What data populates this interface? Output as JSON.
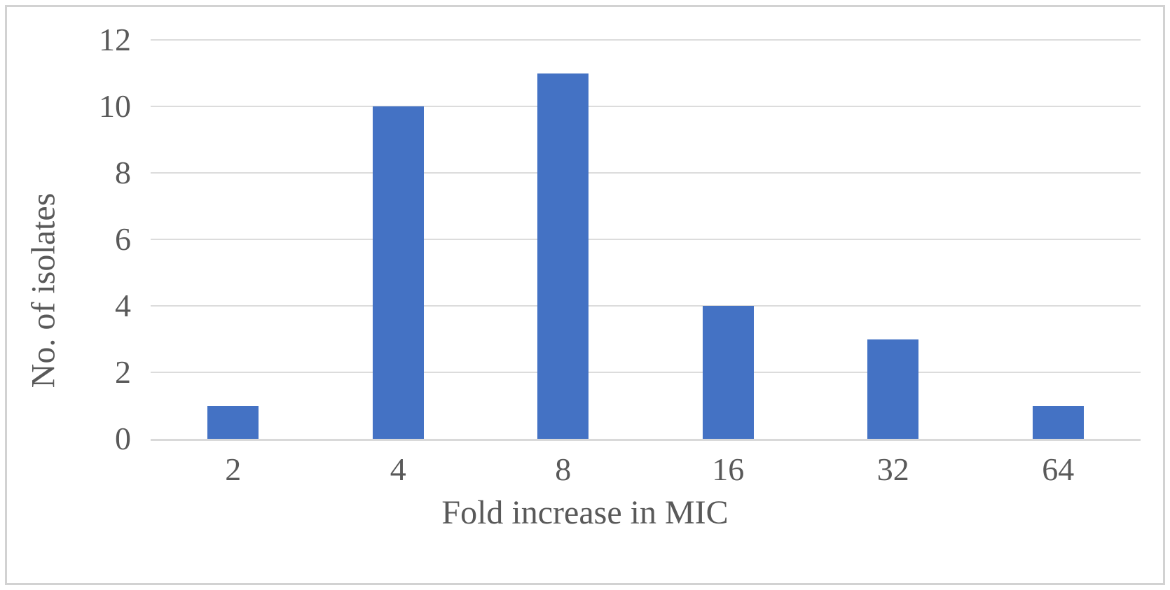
{
  "figure": {
    "background_color": "#ffffff",
    "border_color": "#d2d2d2"
  },
  "chart_data": {
    "type": "bar",
    "title": "",
    "categories": [
      "2",
      "4",
      "8",
      "16",
      "32",
      "64"
    ],
    "values": [
      1,
      10,
      11,
      4,
      3,
      1
    ],
    "xlabel": "Fold increase in MIC",
    "ylabel": "No. of isolates",
    "ylim": [
      0,
      12
    ],
    "yticks": [
      0,
      2,
      4,
      6,
      8,
      10,
      12
    ],
    "grid": "horizontal",
    "legend": "none",
    "bar_color": "#4472C4",
    "gridline_color": "#dcdcdc",
    "axis_line_color": "#d9d9d9",
    "text_color": "#595959"
  }
}
